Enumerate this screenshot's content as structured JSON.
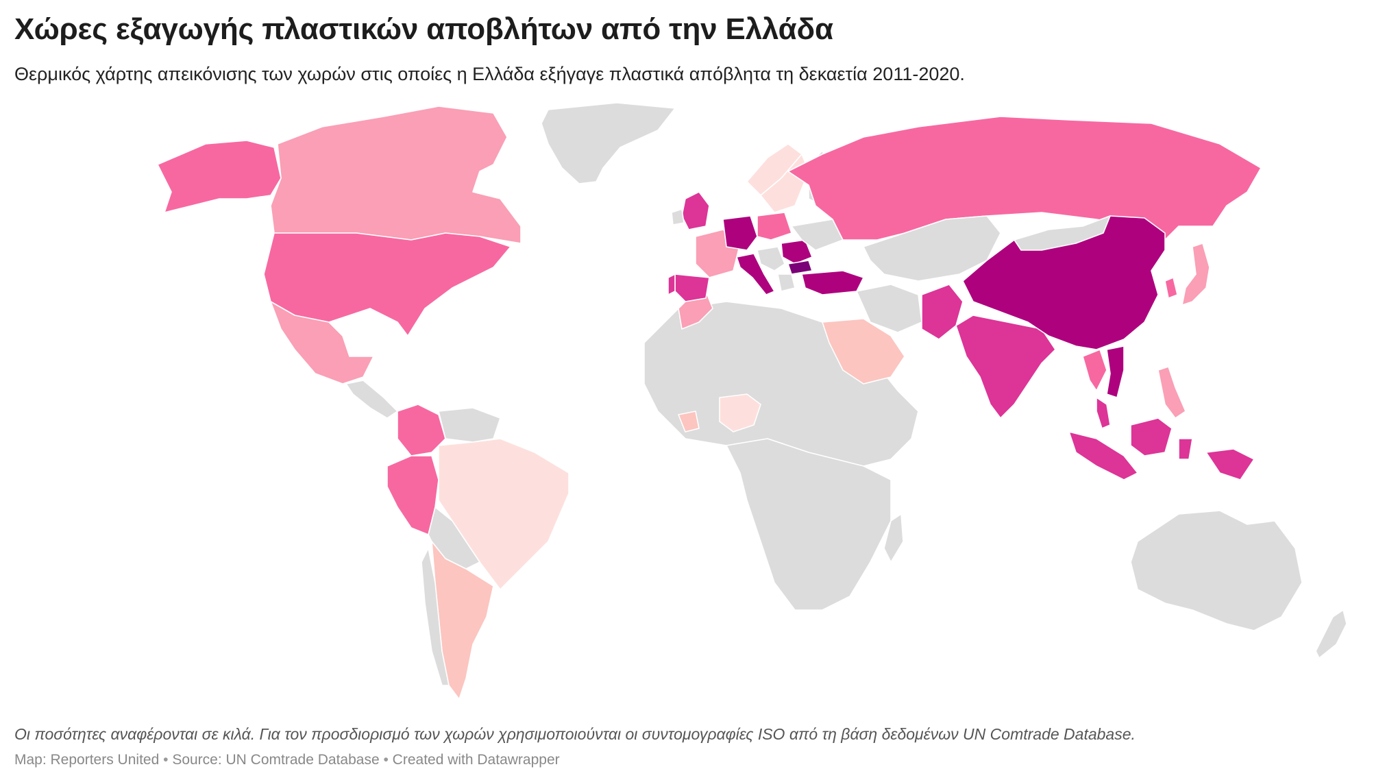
{
  "title": "Χώρες εξαγωγής πλαστικών αποβλήτων από την Ελλάδα",
  "subtitle": "Θερμικός χάρτης απεικόνισης των χωρών στις οποίες η Ελλάδα εξήγαγε πλαστικά απόβλητα τη δεκαετία 2011-2020.",
  "notes": "Οι ποσότητες αναφέρονται σε κιλά. Για τον προσδιορισμό των χωρών χρησιμοποιούνται οι συντομογραφίες ISO από τη βάση δεδομένων UN Comtrade Database.",
  "byline": {
    "map": "Map: Reporters United",
    "source": "Source: UN Comtrade Database",
    "created": "Created with Datawrapper",
    "separator": "•"
  },
  "colors": {
    "no_data": "#dcdcdc",
    "level_1": "#fde0dd",
    "level_2": "#fcc5c0",
    "level_3": "#fa9fb5",
    "level_4": "#f768a1",
    "level_5": "#dd3497",
    "level_6": "#ae017e",
    "level_7": "#7a0177"
  },
  "map_data": {
    "type": "choropleth",
    "countries": [
      {
        "name": "Greenland",
        "level": "no_data"
      },
      {
        "name": "Canada",
        "level": "level_3"
      },
      {
        "name": "United States",
        "level": "level_4"
      },
      {
        "name": "Alaska",
        "level": "level_4"
      },
      {
        "name": "Mexico",
        "level": "level_3"
      },
      {
        "name": "Colombia",
        "level": "level_4"
      },
      {
        "name": "Peru",
        "level": "level_4"
      },
      {
        "name": "Brazil",
        "level": "level_1"
      },
      {
        "name": "Argentina",
        "level": "level_2"
      },
      {
        "name": "Russia",
        "level": "level_4"
      },
      {
        "name": "China",
        "level": "level_6"
      },
      {
        "name": "India",
        "level": "level_5"
      },
      {
        "name": "Pakistan",
        "level": "level_5"
      },
      {
        "name": "Saudi Arabia",
        "level": "level_2"
      },
      {
        "name": "Turkey",
        "level": "level_6"
      },
      {
        "name": "Indonesia",
        "level": "level_5"
      },
      {
        "name": "Malaysia",
        "level": "level_5"
      },
      {
        "name": "Vietnam",
        "level": "level_6"
      },
      {
        "name": "Thailand",
        "level": "level_4"
      },
      {
        "name": "Philippines",
        "level": "level_3"
      },
      {
        "name": "Japan",
        "level": "level_3"
      },
      {
        "name": "South Korea",
        "level": "level_4"
      },
      {
        "name": "Spain",
        "level": "level_5"
      },
      {
        "name": "Portugal",
        "level": "level_5"
      },
      {
        "name": "France",
        "level": "level_3"
      },
      {
        "name": "United Kingdom",
        "level": "level_5"
      },
      {
        "name": "Germany",
        "level": "level_6"
      },
      {
        "name": "Italy",
        "level": "level_6"
      },
      {
        "name": "Poland",
        "level": "level_4"
      },
      {
        "name": "Romania",
        "level": "level_6"
      },
      {
        "name": "Bulgaria",
        "level": "level_7"
      },
      {
        "name": "Sweden",
        "level": "level_1"
      },
      {
        "name": "Norway",
        "level": "level_1"
      },
      {
        "name": "Morocco",
        "level": "level_3"
      },
      {
        "name": "Nigeria",
        "level": "level_1"
      },
      {
        "name": "Ivory Coast",
        "level": "level_2"
      },
      {
        "name": "Australia",
        "level": "no_data"
      },
      {
        "name": "Africa (other)",
        "level": "no_data"
      }
    ]
  }
}
